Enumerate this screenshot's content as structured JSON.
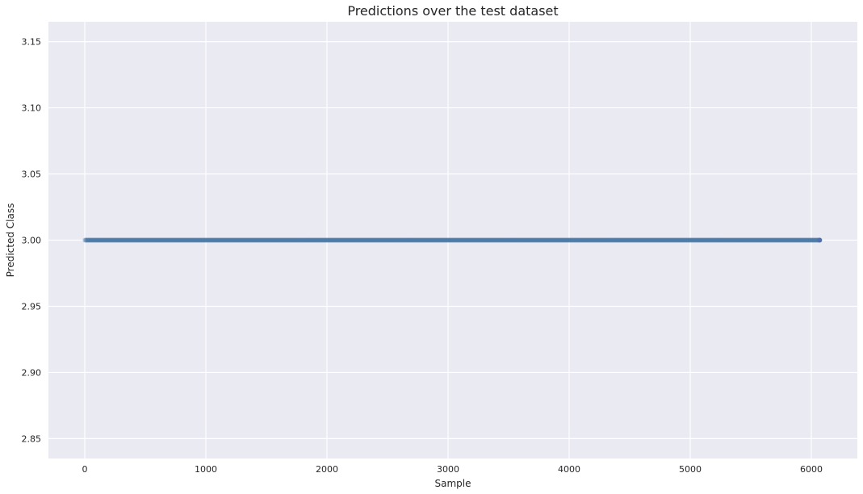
{
  "chart_data": {
    "type": "scatter",
    "title": "Predictions over the test dataset",
    "xlabel": "Sample",
    "ylabel": "Predicted Class",
    "xlim": [
      -300,
      6380
    ],
    "ylim": [
      2.835,
      3.165
    ],
    "xticks": [
      0,
      1000,
      2000,
      3000,
      4000,
      5000,
      6000
    ],
    "xtick_labels": [
      "0",
      "1000",
      "2000",
      "3000",
      "4000",
      "5000",
      "6000"
    ],
    "yticks": [
      2.85,
      2.9,
      2.95,
      3.0,
      3.05,
      3.1,
      3.15
    ],
    "ytick_labels": [
      "2.85",
      "2.90",
      "2.95",
      "3.00",
      "3.05",
      "3.10",
      "3.15"
    ],
    "grid": true,
    "background_color": "#eaeaf2",
    "grid_color": "#ffffff",
    "series": [
      {
        "x_start": 0,
        "x_end": 6069,
        "step": 1,
        "y": 3.0,
        "color": "#4c72b0",
        "alpha": 0.06
      }
    ]
  }
}
